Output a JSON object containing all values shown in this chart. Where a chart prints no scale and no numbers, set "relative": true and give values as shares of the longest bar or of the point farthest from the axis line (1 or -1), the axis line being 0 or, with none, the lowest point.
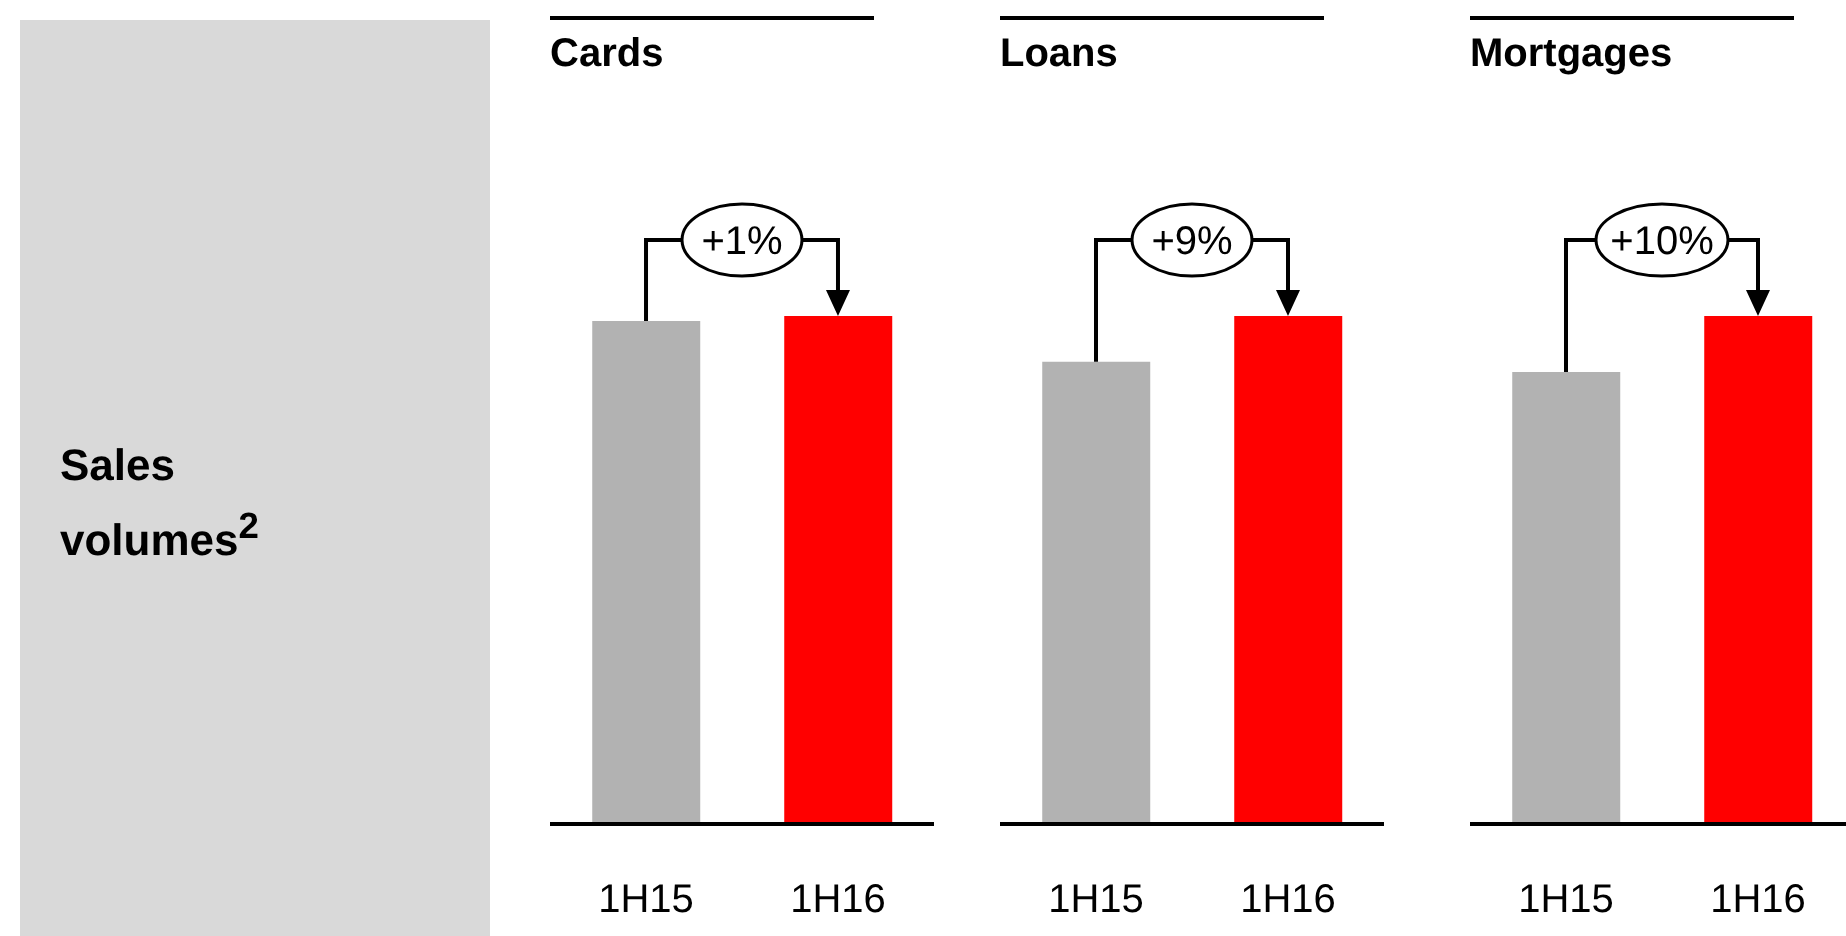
{
  "chart_data": [
    {
      "type": "other",
      "title": "Sales volumes$^{2}$"
    },
    {
      "type": "bar",
      "title": "Cards",
      "categories": [
        "1H15",
        "1H16"
      ],
      "values": [
        0.99,
        1
      ],
      "colors": [
        "#b2b2b2",
        "#ff0000"
      ],
      "relative": true,
      "annotations": [
        "+1%"
      ]
    },
    {
      "type": "bar",
      "title": "Loans",
      "categories": [
        "1H15",
        "1H16"
      ],
      "values": [
        0.91,
        1
      ],
      "colors": [
        "#b2b2b2",
        "#ff0000"
      ],
      "relative": true,
      "annotations": [
        "+9%"
      ]
    },
    {
      "type": "bar",
      "title": "Mortgages",
      "categories": [
        "1H15",
        "1H16"
      ],
      "values": [
        0.89,
        1
      ],
      "colors": [
        "#b2b2b2",
        "#ff0000"
      ],
      "relative": true,
      "annotations": [
        "+10%"
      ]
    }
  ]
}
